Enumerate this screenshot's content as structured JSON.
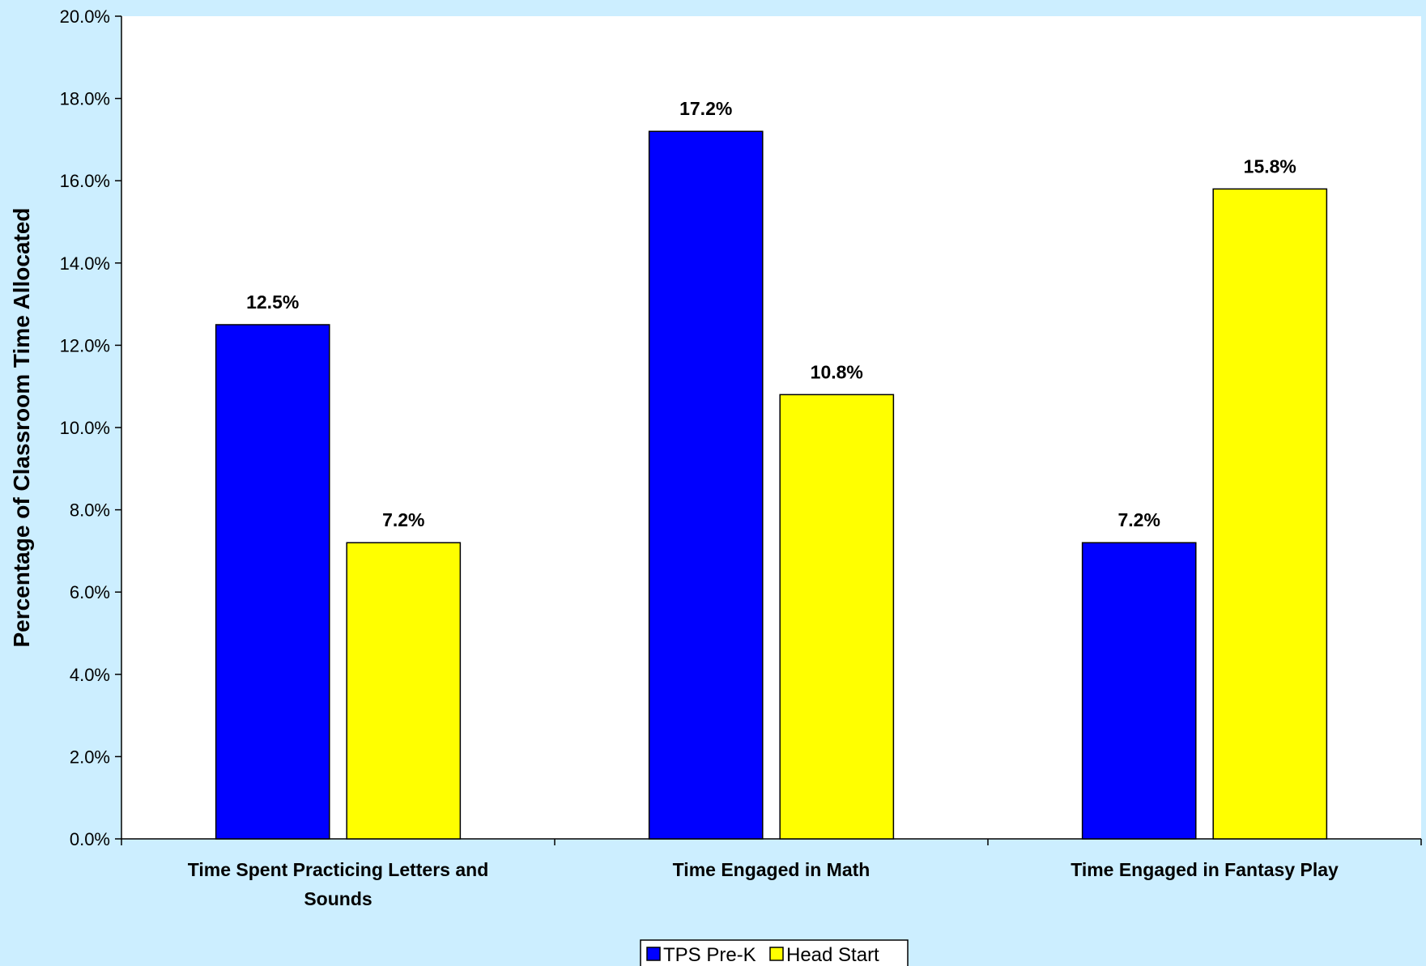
{
  "chart_data": {
    "type": "bar",
    "title": "",
    "xlabel": "",
    "ylabel": "Percentage of Classroom Time Allocated",
    "categories": [
      [
        "Time Spent Practicing Letters and",
        "Sounds"
      ],
      [
        "Time Engaged in Math"
      ],
      [
        "Time Engaged in Fantasy Play"
      ]
    ],
    "series": [
      {
        "name": "TPS Pre-K",
        "color": "#0000ff",
        "values": [
          12.5,
          17.2,
          7.2
        ]
      },
      {
        "name": "Head Start",
        "color": "#ffff00",
        "values": [
          7.2,
          10.8,
          15.8
        ]
      }
    ],
    "ylim": [
      0,
      20
    ],
    "yticks": [
      "0.0%",
      "2.0%",
      "4.0%",
      "6.0%",
      "8.0%",
      "10.0%",
      "12.0%",
      "14.0%",
      "16.0%",
      "18.0%",
      "20.0%"
    ],
    "value_suffix": "%",
    "grid": false,
    "legend_position": "bottom",
    "colors": {
      "background": "#cceeff",
      "plot_area": "#ffffff"
    }
  }
}
